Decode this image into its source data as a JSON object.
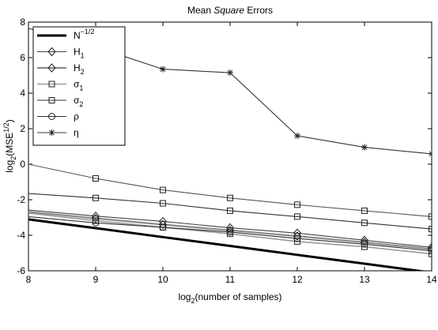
{
  "chart_data": {
    "type": "line",
    "title": {
      "pre": "Mean ",
      "italic": "Square",
      "post": " Errors"
    },
    "xlabel": {
      "pre": "log",
      "sub": "2",
      "post": "(number of samples)"
    },
    "ylabel": {
      "pre": "log",
      "sub": "2",
      "mid": "(MSE",
      "sup": "1/2",
      "post": ")"
    },
    "xlim": [
      8,
      14
    ],
    "ylim": [
      -6,
      8
    ],
    "x_ticks": [
      "8",
      "9",
      "10",
      "11",
      "12",
      "13",
      "14"
    ],
    "y_ticks": [
      "-6",
      "-4",
      "-2",
      "0",
      "2",
      "4",
      "6",
      "8"
    ],
    "grid": false,
    "legend_position": "top-left",
    "x": [
      8,
      9,
      10,
      11,
      12,
      13,
      14
    ],
    "series": [
      {
        "key": "n",
        "label": {
          "base": "N",
          "sup": "−1/2"
        },
        "color": "#000000",
        "marker": "none",
        "width": 3,
        "values": [
          -3.1,
          -3.6,
          -4.1,
          -4.6,
          -5.1,
          -5.6,
          -6.1
        ]
      },
      {
        "key": "h1",
        "label": {
          "base": "H",
          "sub": "1"
        },
        "color": "#444444",
        "marker": "diamond",
        "width": 1.1,
        "values": [
          -2.58,
          -2.92,
          -3.22,
          -3.58,
          -3.88,
          -4.28,
          -4.68
        ]
      },
      {
        "key": "h2",
        "label": {
          "base": "H",
          "sub": "2"
        },
        "color": "#8a8a8a",
        "marker": "diamond",
        "width": 2.2,
        "values": [
          -2.68,
          -3.05,
          -3.4,
          -3.72,
          -4.05,
          -4.4,
          -4.78
        ]
      },
      {
        "key": "s1",
        "label": {
          "base": "σ",
          "sub": "1"
        },
        "color": "#999999",
        "marker": "square",
        "width": 1.6,
        "values": [
          -2.75,
          -3.18,
          -3.55,
          -3.92,
          -4.35,
          -4.65,
          -5.05
        ]
      },
      {
        "key": "s2",
        "label": {
          "base": "σ",
          "sub": "2"
        },
        "color": "#333333",
        "marker": "square",
        "width": 1.1,
        "values": [
          -1.65,
          -1.9,
          -2.2,
          -2.62,
          -2.95,
          -3.3,
          -3.65
        ]
      },
      {
        "key": "rho",
        "label": {
          "base": "ρ"
        },
        "color": "#333333",
        "marker": "circle",
        "width": 1.1,
        "values": [
          -2.95,
          -3.3,
          -3.55,
          -3.82,
          -4.18,
          -4.5,
          -4.88
        ]
      },
      {
        "key": "eta",
        "label": {
          "base": "η"
        },
        "color": "#333333",
        "marker": "star",
        "width": 1.1,
        "values": [
          7.65,
          6.6,
          5.35,
          5.15,
          1.6,
          0.95,
          0.58
        ]
      },
      {
        "key": "extra",
        "label": null,
        "color": "#555555",
        "marker": "square",
        "width": 1.1,
        "values": [
          0.0,
          -0.8,
          -1.45,
          -1.9,
          -2.28,
          -2.62,
          -2.95
        ]
      }
    ]
  }
}
